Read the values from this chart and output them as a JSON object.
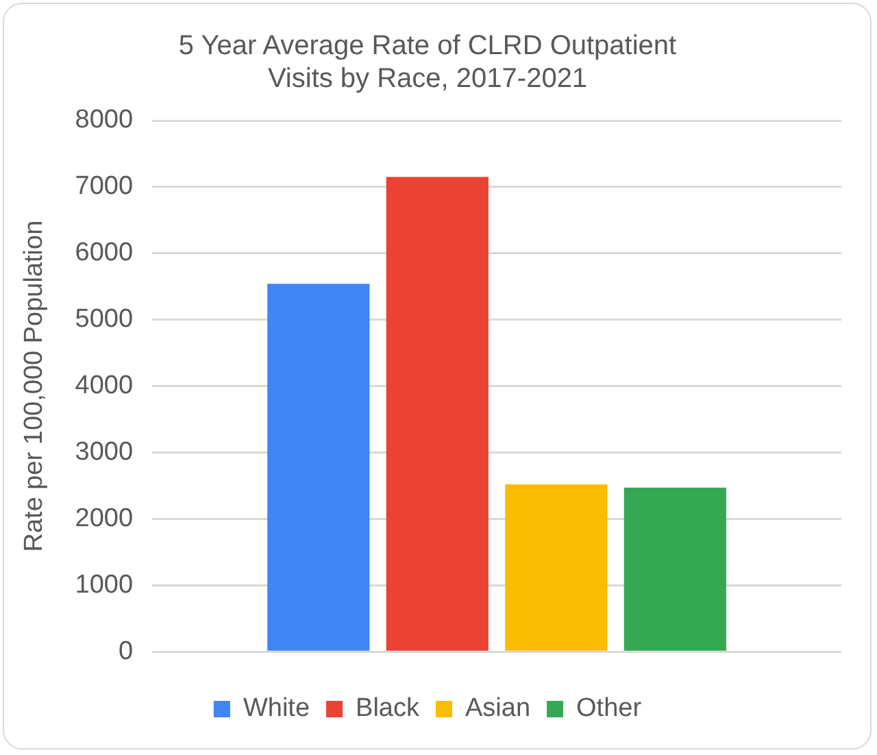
{
  "chart_data": {
    "type": "bar",
    "title": "5 Year Average Rate of CLRD Outpatient Visits by Race, 2017-2021",
    "ylabel": "Rate per 100,000 Population",
    "categories": [
      null
    ],
    "series": [
      {
        "name": "White",
        "color": "#4285f4",
        "values": [
          5540
        ]
      },
      {
        "name": "Black",
        "color": "#ea4335",
        "values": [
          7150
        ]
      },
      {
        "name": "Asian",
        "color": "#fbbc04",
        "values": [
          2520
        ]
      },
      {
        "name": "Other",
        "color": "#34a853",
        "values": [
          2470
        ]
      }
    ],
    "ylim": [
      0,
      8000
    ],
    "yticks": [
      0,
      1000,
      2000,
      3000,
      4000,
      5000,
      6000,
      7000,
      8000
    ],
    "grid": "y",
    "legend": "bottom"
  }
}
